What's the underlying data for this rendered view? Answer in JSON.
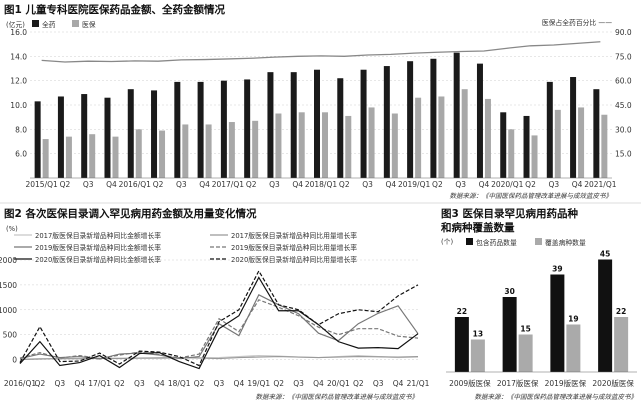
{
  "chart_data": [
    {
      "type": "bar",
      "title": "图1 儿童专科医院医保药品金额、全药金额情况",
      "y_unit_label": "(亿元)",
      "y2_label": "医保占全药百分比 ——",
      "ylim": [
        4,
        16
      ],
      "y_ticks": [
        6.0,
        8.0,
        10.0,
        12.0,
        14.0,
        16.0
      ],
      "y2lim": [
        0,
        90
      ],
      "y2_ticks": [
        "15.0",
        "30.0",
        "45.0",
        "60.0",
        "75.0",
        "90.0"
      ],
      "legend": [
        "全药",
        "医保"
      ],
      "categories": [
        "2015/Q1",
        "Q2",
        "Q3",
        "Q4",
        "2016/Q1",
        "Q2",
        "Q3",
        "Q4",
        "2017/Q1",
        "Q2",
        "Q3",
        "Q4",
        "2018/Q1",
        "Q2",
        "Q3",
        "Q4",
        "2019/Q1",
        "Q2",
        "Q3",
        "Q4",
        "2020/Q1",
        "Q2",
        "Q3",
        "Q4",
        "2021/Q1"
      ],
      "series": [
        {
          "name": "全药",
          "values": [
            10.3,
            10.7,
            10.9,
            10.6,
            11.3,
            11.2,
            11.9,
            11.9,
            12.0,
            12.1,
            12.7,
            12.7,
            12.9,
            12.2,
            12.9,
            13.2,
            13.6,
            13.8,
            14.3,
            13.4,
            9.4,
            9.1,
            11.9,
            12.3,
            11.3
          ],
          "color": "#1a1a1a"
        },
        {
          "name": "医保",
          "values": [
            7.2,
            7.4,
            7.6,
            7.4,
            8.0,
            7.9,
            8.4,
            8.4,
            8.6,
            8.7,
            9.3,
            9.4,
            9.4,
            9.1,
            9.8,
            9.3,
            10.6,
            10.7,
            11.3,
            10.5,
            8.0,
            7.5,
            9.6,
            9.8,
            9.2
          ],
          "color": "#a8a8a8"
        },
        {
          "name": "医保占全药百分比",
          "axis": "right",
          "values": [
            72.5,
            71.5,
            72.0,
            71.8,
            72.2,
            72.0,
            72.8,
            73.0,
            73.4,
            73.8,
            74.5,
            75.0,
            75.3,
            75.0,
            75.8,
            76.2,
            77.0,
            77.5,
            78.0,
            78.3,
            80.0,
            81.5,
            82.0,
            83.0,
            84.0
          ],
          "color": "#888888"
        }
      ],
      "source": "数据来源：《中国医保药品管理改革进展与成效蓝皮书》"
    },
    {
      "type": "line",
      "title": "图2 各次医保目录调入罕见病用药金额及用量变化情况",
      "y_unit_label": "(%)",
      "ylim": [
        -250,
        2000
      ],
      "y_ticks": [
        0,
        500,
        1000,
        1500,
        2000
      ],
      "categories": [
        "2016/Q1",
        "Q2",
        "Q3",
        "Q4",
        "2017/Q1",
        "Q2",
        "Q3",
        "Q4",
        "2018/Q1",
        "Q2",
        "Q3",
        "Q4",
        "2019/Q1",
        "Q2",
        "Q3",
        "Q4",
        "2020/Q1",
        "Q2",
        "Q3",
        "Q4",
        "2021/Q1"
      ],
      "x_labels": [
        "2016/Q1",
        "Q2",
        "Q3",
        "Q4",
        "17/Q1",
        "Q2",
        "Q3",
        "Q4",
        "18/Q1",
        "Q2",
        "Q3",
        "Q4",
        "19/Q1",
        "Q2",
        "Q3",
        "Q4",
        "20/Q1",
        "Q2",
        "Q3",
        "Q4",
        "21/Q1"
      ],
      "series": [
        {
          "name": "2017版医保目录新增品种同比金额增长率",
          "color": "#c8c8c8",
          "dash": "",
          "values": [
            10,
            20,
            15,
            25,
            20,
            30,
            25,
            20,
            30,
            35,
            40,
            60,
            80,
            70,
            50,
            40,
            60,
            80,
            60,
            40,
            50
          ]
        },
        {
          "name": "2017版医保目录新增品种同比用量增长率",
          "color": "#999999",
          "dash": "",
          "values": [
            0,
            10,
            20,
            15,
            25,
            20,
            30,
            35,
            40,
            30,
            20,
            40,
            50,
            60,
            50,
            40,
            50,
            60,
            55,
            50,
            60
          ]
        },
        {
          "name": "2019版医保目录新增品种同比金额增长率",
          "color": "#777777",
          "dash": "",
          "values": [
            20,
            110,
            40,
            60,
            10,
            110,
            130,
            90,
            20,
            60,
            720,
            480,
            1300,
            1100,
            920,
            530,
            380,
            720,
            930,
            1080,
            520
          ]
        },
        {
          "name": "2019版医保目录新增品种同比用量增长率",
          "color": "#777777",
          "dash": "4 2",
          "values": [
            30,
            140,
            30,
            80,
            20,
            90,
            150,
            100,
            30,
            110,
            820,
            560,
            1200,
            1050,
            880,
            650,
            500,
            620,
            620,
            470,
            430
          ]
        },
        {
          "name": "2020版医保目录新增品种同比金额增长率",
          "color": "#111111",
          "dash": "",
          "values": [
            -80,
            360,
            -120,
            -60,
            80,
            -160,
            120,
            140,
            -40,
            -180,
            620,
            880,
            1650,
            980,
            980,
            700,
            360,
            230,
            240,
            220,
            520
          ]
        },
        {
          "name": "2020版医保目录新增品种同比用量增长率",
          "color": "#111111",
          "dash": "4 2",
          "values": [
            -60,
            660,
            -40,
            -30,
            130,
            -90,
            170,
            150,
            60,
            -120,
            760,
            1000,
            1780,
            1100,
            1000,
            700,
            920,
            1000,
            960,
            1280,
            1500
          ]
        }
      ],
      "source": "数据来源：《中国医保药品管理改革进展与成效蓝皮书》"
    },
    {
      "type": "bar",
      "title_line1": "图3 医保目录罕见病用药品种",
      "title_line2": "和病种覆盖数量",
      "y_unit_label": "(个)",
      "legend": [
        "包含药品数量",
        "覆盖病种数量"
      ],
      "categories": [
        "2009版医保",
        "2017版医保",
        "2019版医保",
        "2020版医保"
      ],
      "series": [
        {
          "name": "包含药品数量",
          "values": [
            22,
            30,
            39,
            45
          ],
          "color": "#111111"
        },
        {
          "name": "覆盖病种数量",
          "values": [
            13,
            15,
            19,
            22
          ],
          "color": "#aaaaaa"
        }
      ],
      "ylim": [
        0,
        48
      ],
      "source": "数据来源：《中国医保药品管理改革进展与成效蓝皮书》"
    }
  ]
}
